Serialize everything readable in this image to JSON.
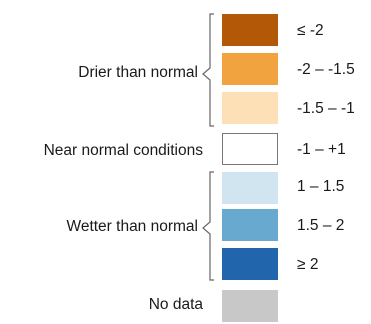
{
  "groups": [
    {
      "label": "Drier than normal"
    },
    {
      "label": "Near normal conditions"
    },
    {
      "label": "Wetter than normal"
    },
    {
      "label": "No data"
    }
  ],
  "classes": [
    {
      "label": "≤ -2",
      "color": "#b35806"
    },
    {
      "label": "-2 – -1.5",
      "color": "#f1a340"
    },
    {
      "label": "-1.5 – -1",
      "color": "#fee0b6"
    },
    {
      "label": "-1 – +1",
      "color": "#ffffff"
    },
    {
      "label": "1 – 1.5",
      "color": "#d1e5f0"
    },
    {
      "label": "1.5 – 2",
      "color": "#67a9cf"
    },
    {
      "label": "≥ 2",
      "color": "#2166ac"
    },
    {
      "label": "",
      "color": "#c8c8c8"
    }
  ]
}
